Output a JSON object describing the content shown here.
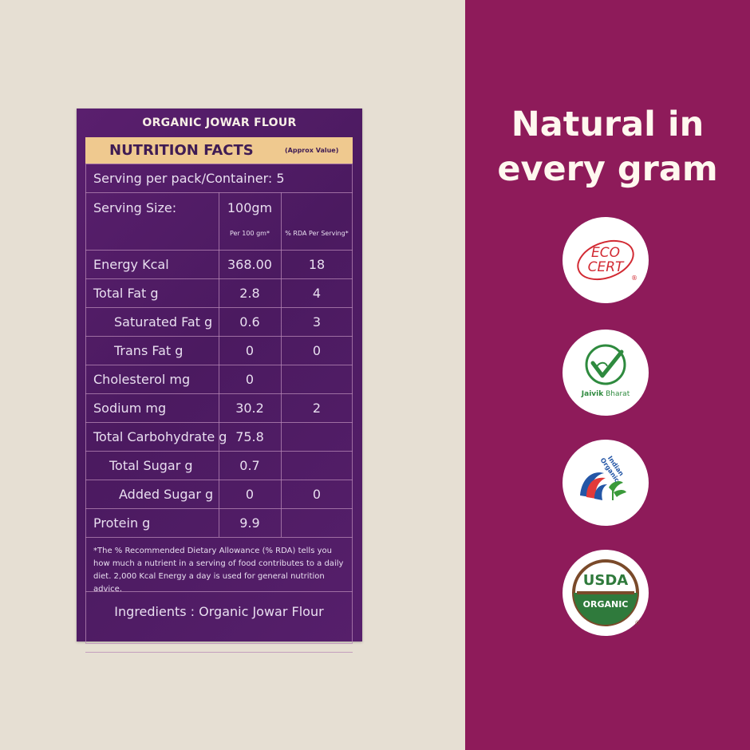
{
  "label": {
    "product_title": "ORGANIC JOWAR FLOUR",
    "facts_title": "NUTRITION FACTS",
    "facts_note": "(Approx Value)",
    "serving_per_pack": "Serving per pack/Container: 5",
    "serving_size_label": "Serving Size:",
    "serving_size_value": "100gm",
    "col_per100": "Per 100 gm*",
    "col_rda": "% RDA Per Serving*",
    "rows": [
      {
        "name": "Energy Kcal",
        "per100": "368.00",
        "rda": "18"
      },
      {
        "name": "Total Fat g",
        "per100": "2.8",
        "rda": "4"
      },
      {
        "name": "Saturated Fat g",
        "per100": "0.6",
        "rda": "3"
      },
      {
        "name": "Trans Fat g",
        "per100": "0",
        "rda": "0"
      },
      {
        "name": "Cholesterol mg",
        "per100": "0",
        "rda": ""
      },
      {
        "name": "Sodium mg",
        "per100": "30.2",
        "rda": "2"
      },
      {
        "name": "Total Carbohydrate g",
        "per100": "75.8",
        "rda": ""
      },
      {
        "name": "Total Sugar g",
        "per100": "0.7",
        "rda": ""
      },
      {
        "name": "Added Sugar g",
        "per100": "0",
        "rda": "0"
      },
      {
        "name": "Protein g",
        "per100": "9.9",
        "rda": ""
      }
    ],
    "footnote": "*The % Recommended Dietary Allowance (% RDA) tells you how much a nutrient in a serving of food contributes to a daily diet. 2,000 Kcal Energy a day is used for general nutrition advice.",
    "ingredients": "Ingredients : Organic Jowar Flour"
  },
  "headline": {
    "line1": "Natural in",
    "line2": "every gram"
  },
  "badges": {
    "ecocert_line1": "ECO",
    "ecocert_line2": "CERT",
    "ecocert_reg": "®",
    "jaivik_bold": "Jaivik",
    "jaivik_rest": " Bharat",
    "indian_organic": "Indian Organic",
    "usda_line1": "USDA",
    "usda_line2": "ORGANIC",
    "usda_reg": "®"
  },
  "colors": {
    "left_bg": "#e6dfd3",
    "right_bg": "#8e1b5a",
    "label_purple": "#4b1a60",
    "band_gold": "#efc98f",
    "usda_green": "#2f7a3c",
    "usda_brown": "#7a4a2a",
    "ecocert_red": "#d22a33"
  }
}
